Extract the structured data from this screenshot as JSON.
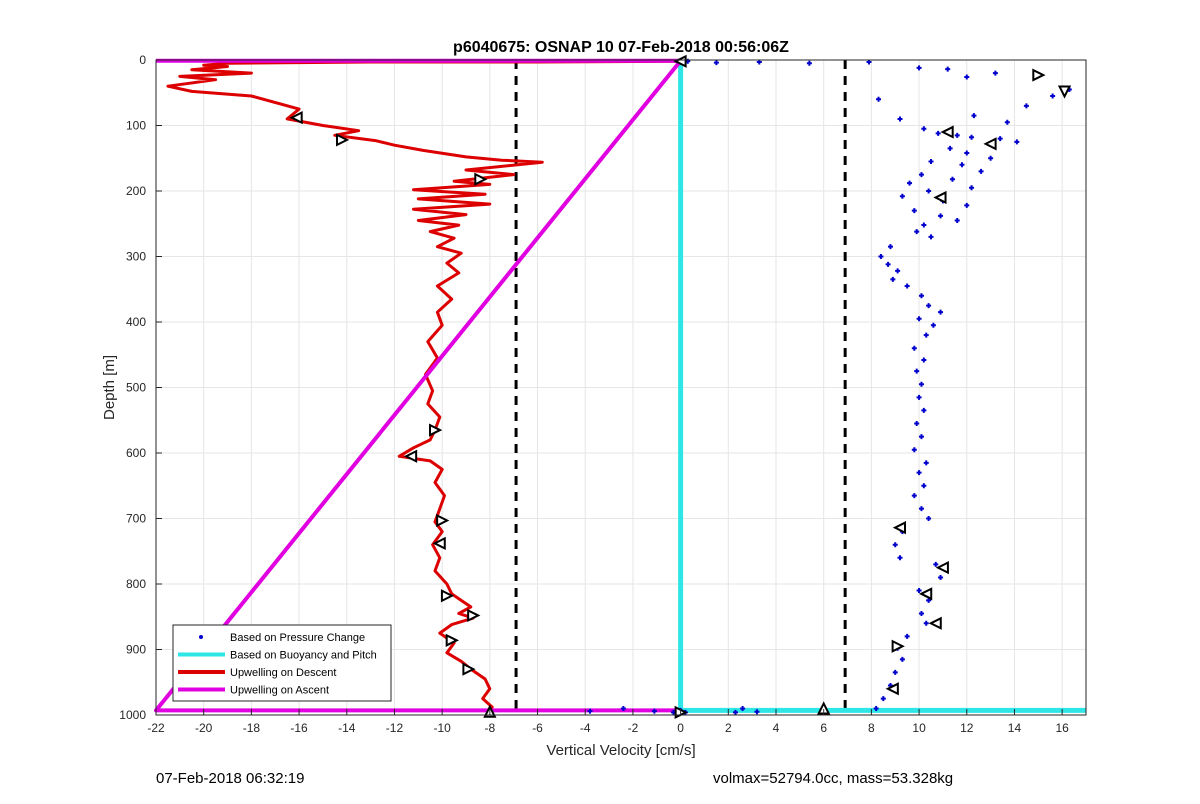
{
  "chart_data": {
    "type": "scatter",
    "title": "p6040675: OSNAP 10 07-Feb-2018 00:56:06Z",
    "xlabel": "Vertical Velocity [cm/s]",
    "ylabel": "Depth [m]",
    "xlim": [
      -22,
      17
    ],
    "ylim": [
      0,
      1000
    ],
    "y_reversed": true,
    "grid": true,
    "xticks": [
      -22,
      -20,
      -18,
      -16,
      -14,
      -12,
      -10,
      -8,
      -6,
      -4,
      -2,
      0,
      2,
      4,
      6,
      8,
      10,
      12,
      14,
      16
    ],
    "yticks": [
      0,
      100,
      200,
      300,
      400,
      500,
      600,
      700,
      800,
      900,
      1000
    ],
    "legend_position": "bottom-left",
    "colors": {
      "pressure": "#0000cc",
      "buoyancy": "#2ee6e6",
      "descent": "#dd0000",
      "ascent": "#e000e0",
      "reference": "#000000"
    },
    "reference_lines": [
      {
        "x": -6.9,
        "style": "dashed"
      },
      {
        "x": 6.9,
        "style": "dashed"
      }
    ],
    "series": [
      {
        "name": "Based on Pressure Change",
        "kind": "points",
        "points": [
          [
            8.3,
            60
          ],
          [
            9.2,
            90
          ],
          [
            10.2,
            105
          ],
          [
            10.8,
            112
          ],
          [
            11.6,
            115
          ],
          [
            12.2,
            118
          ],
          [
            13.4,
            120
          ],
          [
            14.1,
            125
          ],
          [
            11.3,
            135
          ],
          [
            12.0,
            142
          ],
          [
            13.0,
            150
          ],
          [
            10.5,
            155
          ],
          [
            11.8,
            160
          ],
          [
            12.6,
            170
          ],
          [
            10.1,
            175
          ],
          [
            11.4,
            182
          ],
          [
            9.6,
            188
          ],
          [
            12.2,
            195
          ],
          [
            10.4,
            200
          ],
          [
            9.3,
            208
          ],
          [
            11.0,
            215
          ],
          [
            12.0,
            222
          ],
          [
            9.8,
            230
          ],
          [
            10.9,
            238
          ],
          [
            11.6,
            245
          ],
          [
            10.2,
            252
          ],
          [
            9.9,
            262
          ],
          [
            10.5,
            270
          ],
          [
            8.8,
            285
          ],
          [
            8.4,
            300
          ],
          [
            8.7,
            312
          ],
          [
            9.1,
            322
          ],
          [
            8.9,
            335
          ],
          [
            9.5,
            345
          ],
          [
            10.1,
            360
          ],
          [
            10.4,
            375
          ],
          [
            10.9,
            385
          ],
          [
            10.0,
            395
          ],
          [
            10.6,
            405
          ],
          [
            10.3,
            420
          ],
          [
            9.8,
            440
          ],
          [
            10.2,
            458
          ],
          [
            9.9,
            475
          ],
          [
            10.1,
            495
          ],
          [
            10.0,
            515
          ],
          [
            10.2,
            535
          ],
          [
            9.9,
            555
          ],
          [
            10.1,
            575
          ],
          [
            9.8,
            595
          ],
          [
            10.3,
            615
          ],
          [
            10.0,
            630
          ],
          [
            10.2,
            650
          ],
          [
            9.8,
            665
          ],
          [
            10.1,
            685
          ],
          [
            10.4,
            700
          ],
          [
            9.3,
            720
          ],
          [
            9.0,
            740
          ],
          [
            9.2,
            760
          ],
          [
            10.7,
            770
          ],
          [
            10.9,
            790
          ],
          [
            10.0,
            810
          ],
          [
            10.4,
            825
          ],
          [
            10.1,
            845
          ],
          [
            10.3,
            860
          ],
          [
            9.5,
            880
          ],
          [
            9.1,
            898
          ],
          [
            9.3,
            915
          ],
          [
            9.0,
            935
          ],
          [
            8.8,
            955
          ],
          [
            8.5,
            975
          ],
          [
            8.2,
            990
          ],
          [
            2.3,
            996
          ],
          [
            2.6,
            990
          ],
          [
            3.2,
            995
          ],
          [
            0.3,
            2
          ],
          [
            1.5,
            4
          ],
          [
            3.3,
            3
          ],
          [
            5.4,
            5
          ],
          [
            7.9,
            3
          ],
          [
            10.0,
            12
          ],
          [
            11.2,
            14
          ],
          [
            12.0,
            26
          ],
          [
            13.2,
            20
          ],
          [
            15.6,
            55
          ],
          [
            16.3,
            45
          ],
          [
            14.5,
            70
          ],
          [
            12.3,
            85
          ],
          [
            13.7,
            95
          ],
          [
            -2.4,
            990
          ],
          [
            -1.1,
            994
          ],
          [
            -3.8,
            994
          ],
          [
            -0.3,
            996
          ],
          [
            0.2,
            996
          ],
          [
            0.0,
            993
          ]
        ]
      },
      {
        "name": "Based on Buoyancy and Pitch",
        "kind": "line",
        "points": [
          [
            0.0,
            0
          ],
          [
            0.0,
            993
          ],
          [
            17.0,
            993
          ]
        ]
      },
      {
        "name": "Upwelling on Descent",
        "kind": "line",
        "points": [
          [
            0.0,
            2
          ],
          [
            -6.0,
            3
          ],
          [
            -13.0,
            3
          ],
          [
            -19.0,
            5
          ],
          [
            -20.0,
            8
          ],
          [
            -19.0,
            10
          ],
          [
            -20.5,
            15
          ],
          [
            -18.0,
            20
          ],
          [
            -21.0,
            25
          ],
          [
            -19.5,
            30
          ],
          [
            -21.5,
            40
          ],
          [
            -20.5,
            48
          ],
          [
            -18.0,
            55
          ],
          [
            -16.0,
            75
          ],
          [
            -16.5,
            90
          ],
          [
            -15.0,
            100
          ],
          [
            -13.5,
            108
          ],
          [
            -14.5,
            115
          ],
          [
            -12.8,
            123
          ],
          [
            -12.0,
            130
          ],
          [
            -10.8,
            138
          ],
          [
            -9.0,
            148
          ],
          [
            -7.5,
            153
          ],
          [
            -5.8,
            156
          ],
          [
            -9.0,
            168
          ],
          [
            -7.0,
            175
          ],
          [
            -9.5,
            185
          ],
          [
            -8.0,
            190
          ],
          [
            -11.2,
            198
          ],
          [
            -8.2,
            205
          ],
          [
            -11.0,
            212
          ],
          [
            -8.0,
            220
          ],
          [
            -11.2,
            228
          ],
          [
            -9.0,
            236
          ],
          [
            -11.0,
            245
          ],
          [
            -9.3,
            252
          ],
          [
            -10.5,
            262
          ],
          [
            -9.5,
            272
          ],
          [
            -10.2,
            285
          ],
          [
            -9.2,
            295
          ],
          [
            -9.8,
            310
          ],
          [
            -9.3,
            325
          ],
          [
            -10.2,
            345
          ],
          [
            -9.6,
            365
          ],
          [
            -10.2,
            385
          ],
          [
            -10.0,
            405
          ],
          [
            -10.6,
            430
          ],
          [
            -10.2,
            455
          ],
          [
            -10.7,
            480
          ],
          [
            -10.4,
            505
          ],
          [
            -10.6,
            525
          ],
          [
            -10.1,
            545
          ],
          [
            -10.3,
            565
          ],
          [
            -10.5,
            580
          ],
          [
            -11.2,
            592
          ],
          [
            -11.8,
            605
          ],
          [
            -10.5,
            612
          ],
          [
            -10.0,
            625
          ],
          [
            -10.3,
            645
          ],
          [
            -9.9,
            665
          ],
          [
            -10.1,
            685
          ],
          [
            -10.3,
            705
          ],
          [
            -10.0,
            720
          ],
          [
            -10.4,
            740
          ],
          [
            -10.1,
            760
          ],
          [
            -10.3,
            780
          ],
          [
            -9.8,
            800
          ],
          [
            -9.6,
            815
          ],
          [
            -9.2,
            825
          ],
          [
            -8.8,
            835
          ],
          [
            -9.3,
            845
          ],
          [
            -8.7,
            852
          ],
          [
            -9.6,
            862
          ],
          [
            -10.1,
            875
          ],
          [
            -9.5,
            890
          ],
          [
            -9.8,
            905
          ],
          [
            -9.2,
            918
          ],
          [
            -8.8,
            930
          ],
          [
            -8.2,
            945
          ],
          [
            -8.0,
            960
          ],
          [
            -8.3,
            975
          ],
          [
            -7.9,
            988
          ],
          [
            -8.0,
            996
          ]
        ]
      },
      {
        "name": "Upwelling on Ascent",
        "kind": "line",
        "points": [
          [
            -22.0,
            1
          ],
          [
            0.0,
            1
          ],
          [
            -22.0,
            993
          ],
          [
            0.0,
            993
          ]
        ]
      }
    ],
    "triangle_markers": [
      [
        -16.1,
        88,
        "left"
      ],
      [
        -14.2,
        122,
        "right"
      ],
      [
        -8.4,
        182,
        "right"
      ],
      [
        -10.3,
        565,
        "right"
      ],
      [
        -11.3,
        605,
        "left"
      ],
      [
        -10.0,
        703,
        "right"
      ],
      [
        -10.1,
        738,
        "left"
      ],
      [
        -9.8,
        818,
        "right"
      ],
      [
        -8.7,
        848,
        "right"
      ],
      [
        -9.6,
        886,
        "right"
      ],
      [
        -8.9,
        930,
        "right"
      ],
      [
        -8.0,
        995,
        "up"
      ],
      [
        0.0,
        2,
        "left"
      ],
      [
        0.0,
        996,
        "right"
      ],
      [
        6.0,
        990,
        "up"
      ],
      [
        15.0,
        23,
        "right"
      ],
      [
        16.1,
        48,
        "down"
      ],
      [
        11.2,
        110,
        "left"
      ],
      [
        13.0,
        128,
        "left"
      ],
      [
        10.9,
        210,
        "left"
      ],
      [
        9.2,
        714,
        "left"
      ],
      [
        11.0,
        775,
        "left"
      ],
      [
        10.3,
        815,
        "left"
      ],
      [
        10.7,
        860,
        "left"
      ],
      [
        9.1,
        895,
        "right"
      ],
      [
        8.9,
        960,
        "left"
      ]
    ]
  },
  "footer": {
    "timestamp": "07-Feb-2018 06:32:19",
    "summary": "volmax=52794.0cc, mass=53.328kg"
  }
}
